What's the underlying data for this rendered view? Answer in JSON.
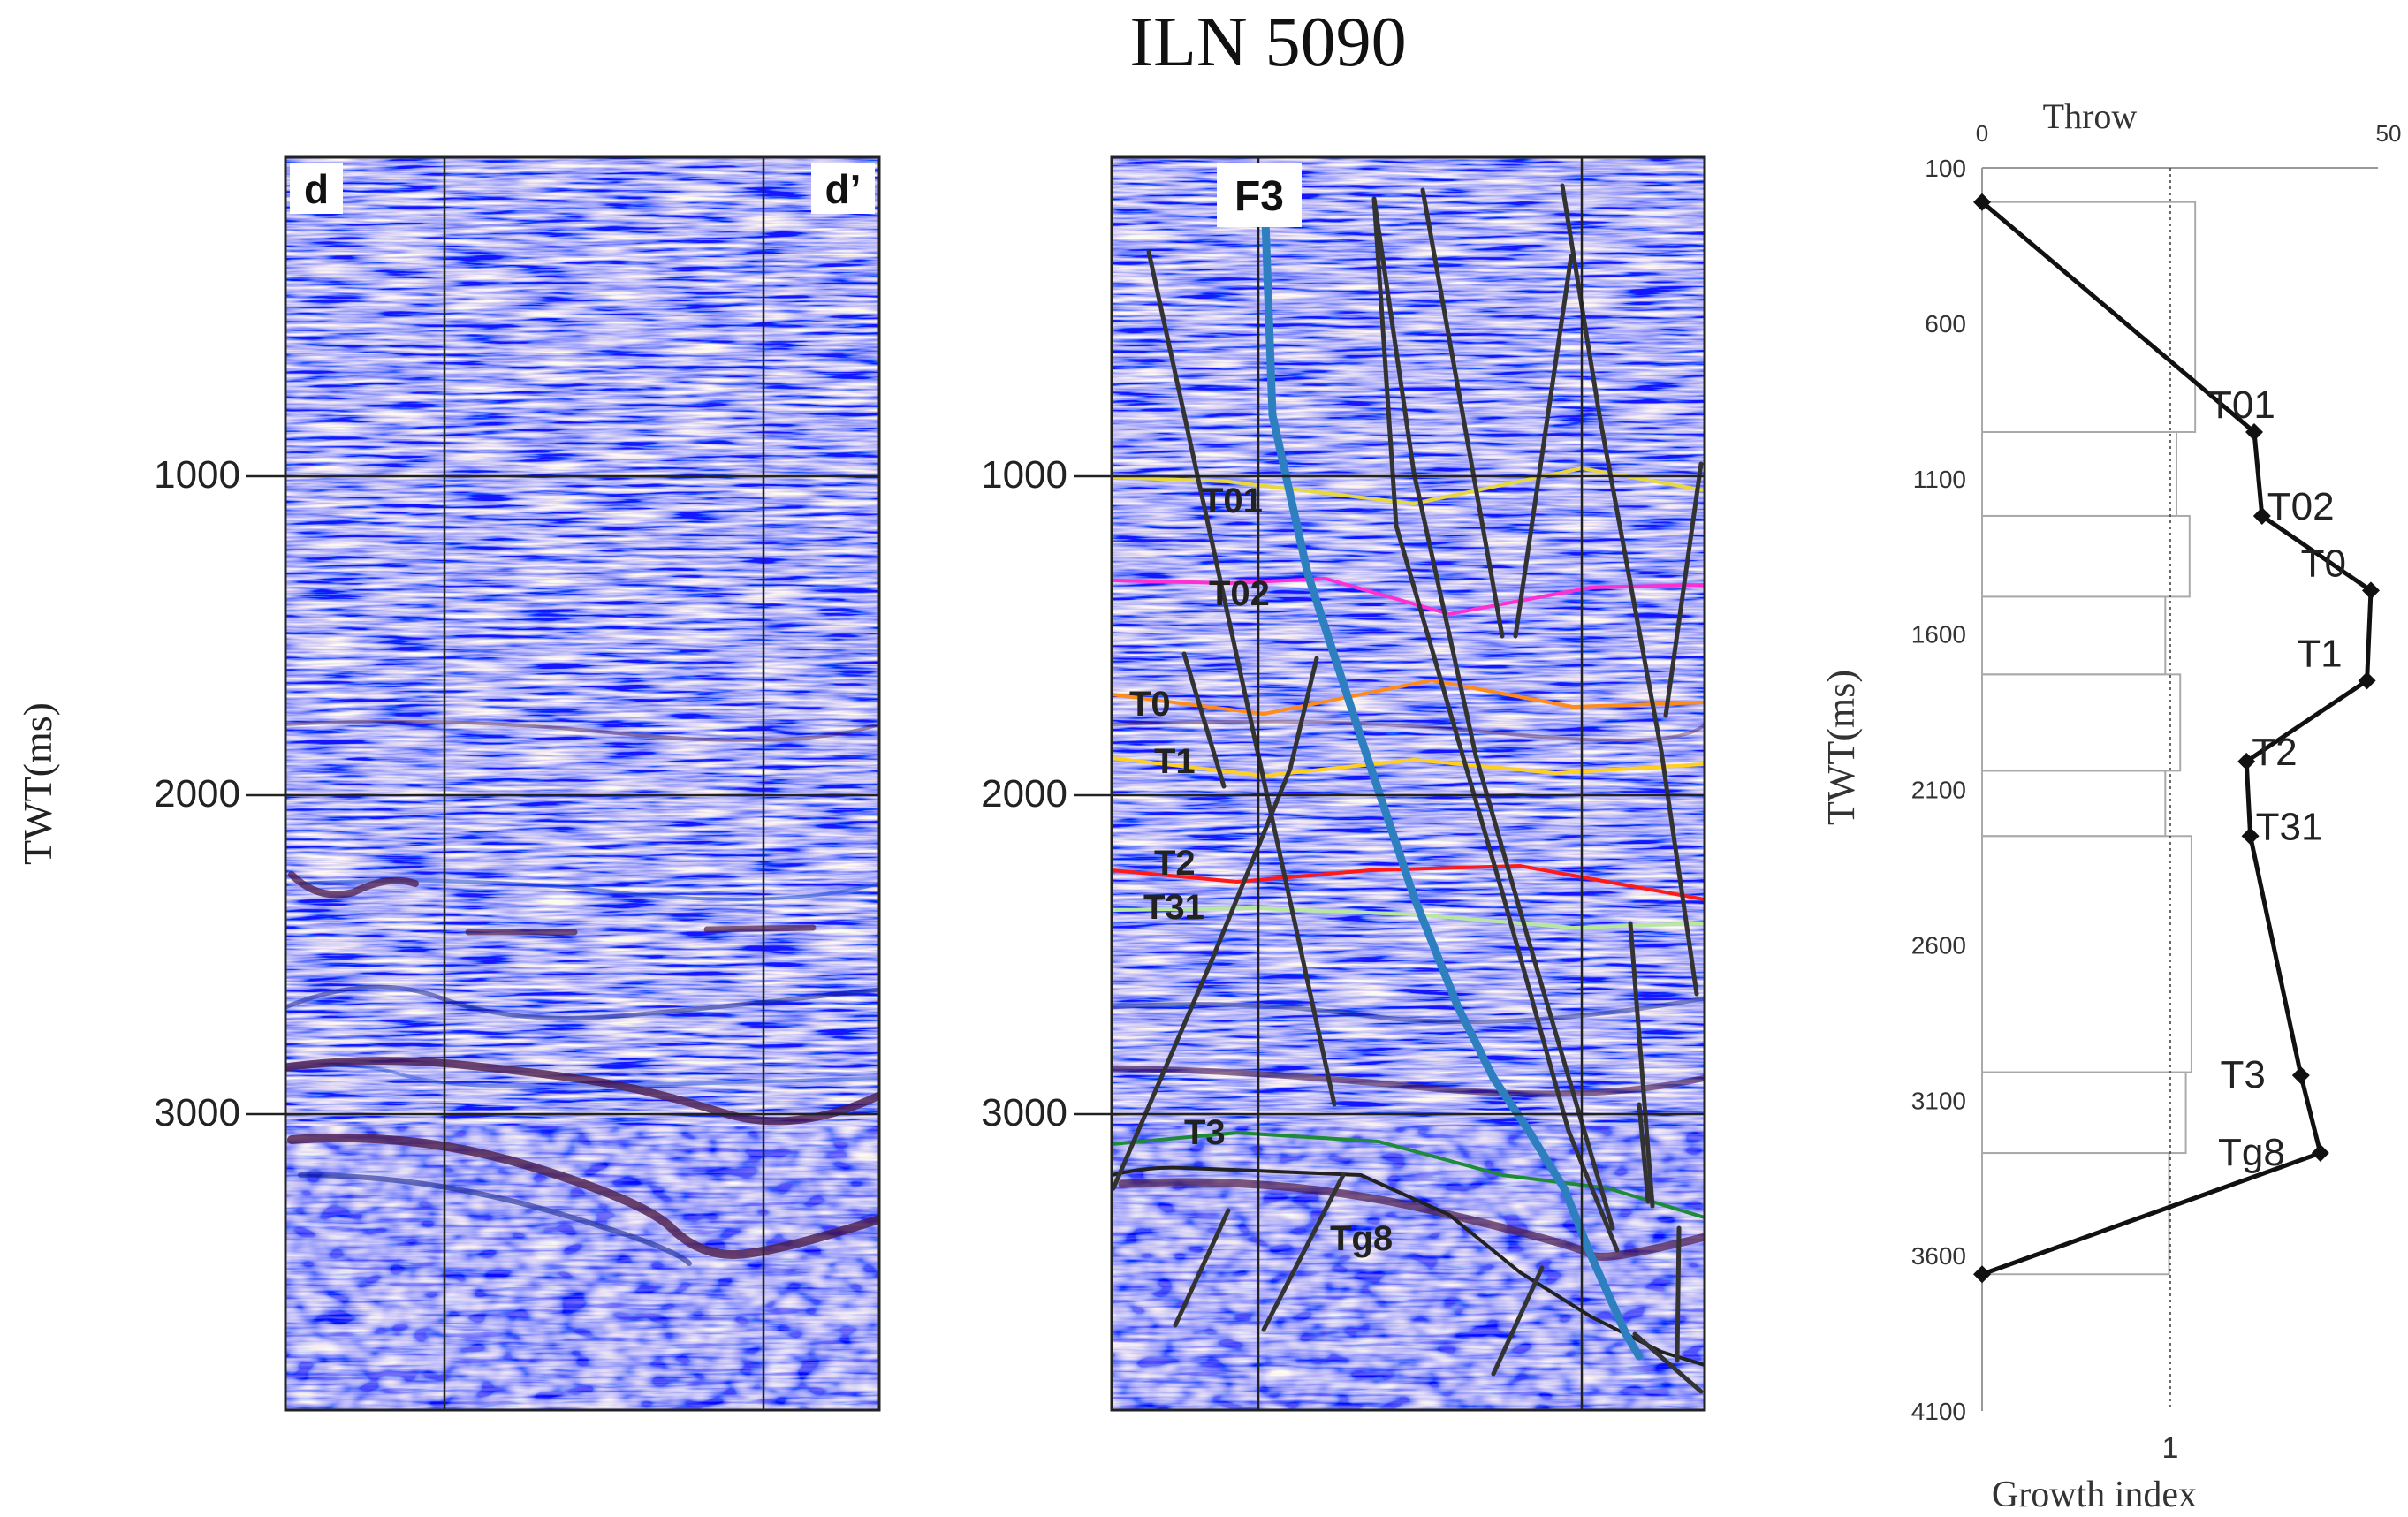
{
  "title": "ILN 5090",
  "y_axis": {
    "label": "TWT(ms)",
    "range_ms": [
      0,
      4000
    ],
    "ticks": [
      1000,
      2000,
      3000
    ],
    "tick_labels": [
      "1000",
      "2000",
      "3000"
    ]
  },
  "panel_left": {
    "corner_labels": [
      "d",
      "d’"
    ]
  },
  "panel_right": {
    "fault_label": "F3",
    "horizon_labels": [
      {
        "name": "T01",
        "twt_ms": 1000,
        "color": "#e8d840"
      },
      {
        "name": "T02",
        "twt_ms": 1310,
        "color": "#ff30d0"
      },
      {
        "name": "T0",
        "twt_ms": 1700,
        "color": "#ff8c1a"
      },
      {
        "name": "T1",
        "twt_ms": 1880,
        "color": "#ffd020"
      },
      {
        "name": "T2",
        "twt_ms": 2250,
        "color": "#ff1a1a"
      },
      {
        "name": "T31",
        "twt_ms": 2370,
        "color": "#b8e8a0"
      },
      {
        "name": "T3",
        "twt_ms": 3080,
        "color": "#1f8a3a"
      },
      {
        "name": "Tg8",
        "twt_ms": 3260,
        "color": "#222222"
      }
    ]
  },
  "colors": {
    "seismic_background": "#e4ebfb",
    "seismic_blue": "#2a55d8",
    "seismic_dark": "#4a1a4a",
    "fault_line": "#333333",
    "main_fault": "#2e7fbf"
  },
  "chart_data": [
    {
      "type": "line",
      "title": "Throw",
      "xlabel": "Throw",
      "xlim": [
        0,
        50
      ],
      "x_tick_labels": [
        "0",
        "50"
      ],
      "ylabel": "TWT(ms)",
      "ylim": [
        100,
        4100
      ],
      "y_tick_labels": [
        "100",
        "600",
        "1100",
        "1600",
        "2100",
        "2600",
        "3100",
        "3600",
        "4100"
      ],
      "series": [
        {
          "name": "Throw",
          "x": [
            0,
            35,
            36,
            50,
            49.5,
            34,
            34.5,
            41,
            43.5,
            0
          ],
          "y": [
            210,
            950,
            1220,
            1460,
            1750,
            2010,
            2250,
            3020,
            3270,
            3660
          ],
          "labels": [
            "",
            "T01",
            "T02",
            "T0",
            "T1",
            "T2",
            "T31",
            "T3",
            "Tg8",
            ""
          ]
        }
      ]
    },
    {
      "type": "bar",
      "title": "Growth index",
      "xlabel": "Growth index",
      "xlim": [
        0,
        2.08
      ],
      "x_tick_labels": [
        "1"
      ],
      "reference_line": 1,
      "intervals": [
        {
          "top": 210,
          "bottom": 950,
          "value": 1.14
        },
        {
          "top": 950,
          "bottom": 1220,
          "value": 1.04
        },
        {
          "top": 1220,
          "bottom": 1480,
          "value": 1.11
        },
        {
          "top": 1480,
          "bottom": 1730,
          "value": 0.98
        },
        {
          "top": 1730,
          "bottom": 2040,
          "value": 1.06
        },
        {
          "top": 2040,
          "bottom": 2250,
          "value": 0.98
        },
        {
          "top": 2250,
          "bottom": 3010,
          "value": 1.12
        },
        {
          "top": 3010,
          "bottom": 3270,
          "value": 1.09
        },
        {
          "top": 3270,
          "bottom": 3660,
          "value": 1.0
        }
      ]
    }
  ]
}
